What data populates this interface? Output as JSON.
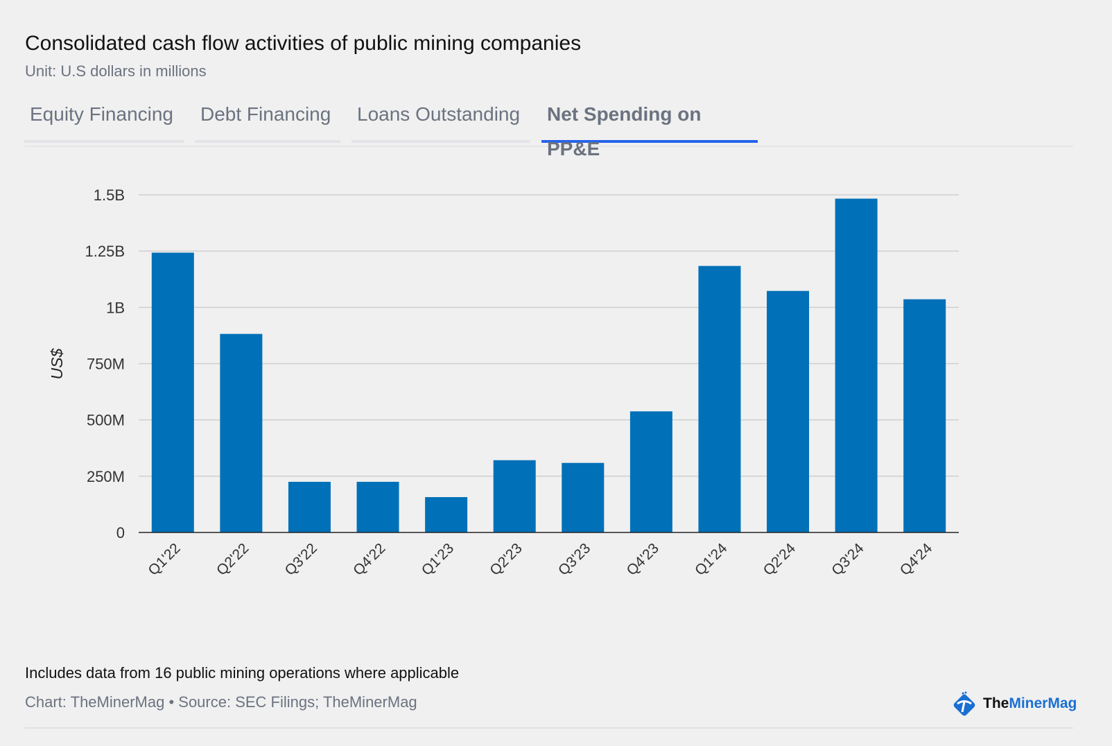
{
  "header": {
    "title": "Consolidated cash flow activities of public mining companies",
    "subtitle": "Unit: U.S dollars in millions"
  },
  "tabs": [
    {
      "label": "Equity Financing",
      "active": false
    },
    {
      "label": "Debt Financing",
      "active": false
    },
    {
      "label": "Loans Outstanding",
      "active": false
    },
    {
      "label": "Net Spending on PP&E",
      "active": true
    }
  ],
  "chart_data": {
    "type": "bar",
    "title": "Net Spending on PP&E",
    "xlabel": "",
    "ylabel": "US$",
    "ylim": [
      0,
      1500
    ],
    "yticks": [
      0,
      250,
      500,
      750,
      1000,
      1250,
      1500
    ],
    "ytick_labels": [
      "0",
      "250M",
      "500M",
      "750M",
      "1B",
      "1.25B",
      "1.5B"
    ],
    "grid": true,
    "categories": [
      "Q1'22",
      "Q2'22",
      "Q3'22",
      "Q4'22",
      "Q1'23",
      "Q2'23",
      "Q3'23",
      "Q4'23",
      "Q1'24",
      "Q2'24",
      "Q3'24",
      "Q4'24"
    ],
    "values": [
      1243,
      882,
      225,
      225,
      157,
      321,
      309,
      538,
      1184,
      1073,
      1483,
      1036
    ],
    "bar_color": "#0070b8"
  },
  "footer": {
    "note": "Includes data from 16 public mining operations where applicable",
    "source": "Chart: TheMinerMag • Source: SEC Filings; TheMinerMag",
    "logo_a": "The",
    "logo_b": "MinerMag"
  }
}
